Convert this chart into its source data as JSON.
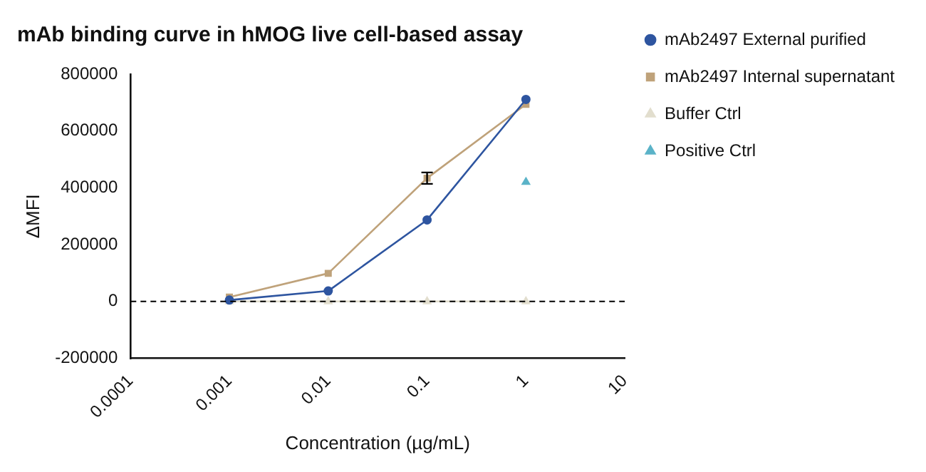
{
  "chart_data": {
    "type": "line",
    "title": "mAb binding curve in hMOG live cell-based assay",
    "xlabel": "Concentration (µg/mL)",
    "ylabel": "ΔMFI",
    "log": "x",
    "x": [
      0.001,
      0.01,
      0.1,
      1
    ],
    "series": [
      {
        "name": "mAb2497 External purified",
        "color": "#2e55a0",
        "marker": "circle",
        "values": [
          5000,
          37000,
          287000,
          711000
        ]
      },
      {
        "name": "mAb2497 Internal supernatant",
        "color": "#bfa27a",
        "marker": "square",
        "values": [
          15000,
          99000,
          434000,
          694000
        ],
        "errors": [
          null,
          null,
          20000,
          null
        ]
      },
      {
        "name": "Buffer Ctrl",
        "color": "#e2dece",
        "marker": "triangle",
        "values": [
          0,
          0,
          0,
          0
        ]
      },
      {
        "name": "Positive Ctrl",
        "color": "#5bb3c8",
        "marker": "triangle",
        "values": [
          null,
          null,
          null,
          420000
        ]
      }
    ],
    "xlim": [
      0.0001,
      10
    ],
    "xticks": [
      0.0001,
      0.001,
      0.01,
      0.1,
      1,
      10
    ],
    "ylim": [
      -200000,
      800000
    ],
    "yticks": [
      -200000,
      0,
      200000,
      400000,
      600000,
      800000
    ],
    "ref_lines": [
      {
        "axis": "y",
        "value": 0,
        "color": "#000000",
        "line_style": "dashed"
      }
    ],
    "grid": false,
    "legend": "right"
  }
}
